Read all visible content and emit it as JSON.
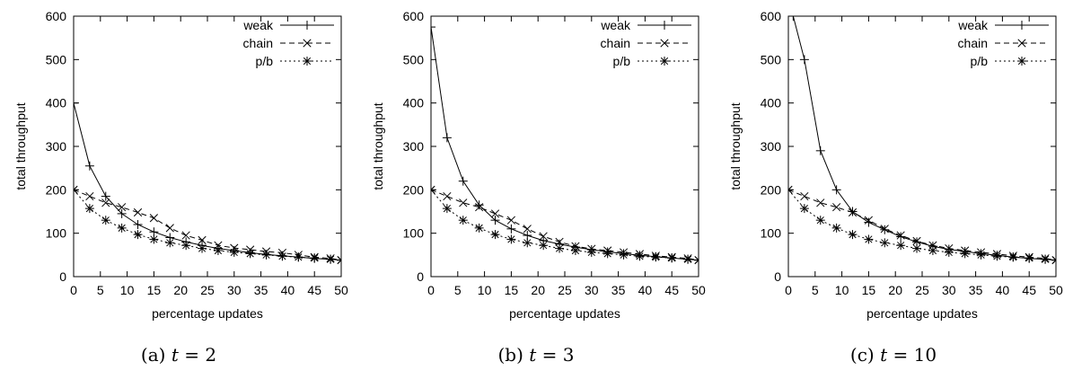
{
  "chart_data": [
    {
      "type": "line",
      "caption_prefix": "(a)",
      "caption_var": "t",
      "caption_eq": "= 2",
      "xlabel": "percentage updates",
      "ylabel": "total throughput",
      "xlim": [
        0,
        50
      ],
      "ylim": [
        0,
        600
      ],
      "xticks": [
        "0",
        "5",
        "10",
        "15",
        "20",
        "25",
        "30",
        "35",
        "40",
        "45",
        "50"
      ],
      "yticks": [
        "0",
        "100",
        "200",
        "300",
        "400",
        "500",
        "600"
      ],
      "grid": false,
      "legend_position": "top-right",
      "series": [
        {
          "name": "weak",
          "marker": "plus",
          "dash": "",
          "x": [
            0,
            3,
            6,
            9,
            12,
            15,
            18,
            21,
            24,
            27,
            30,
            33,
            36,
            39,
            42,
            45,
            48,
            50
          ],
          "y": [
            400,
            255,
            185,
            145,
            120,
            103,
            90,
            80,
            72,
            65,
            60,
            55,
            51,
            48,
            45,
            42,
            40,
            38
          ]
        },
        {
          "name": "chain",
          "marker": "cross",
          "dash": "6,4",
          "x": [
            0,
            3,
            6,
            9,
            12,
            15,
            18,
            21,
            24,
            27,
            30,
            33,
            36,
            39,
            42,
            45,
            48,
            50
          ],
          "y": [
            200,
            185,
            170,
            160,
            148,
            135,
            112,
            95,
            84,
            72,
            66,
            62,
            58,
            55,
            50,
            45,
            42,
            38
          ]
        },
        {
          "name": "p/b",
          "marker": "star",
          "dash": "2,3",
          "x": [
            0,
            3,
            6,
            9,
            12,
            15,
            18,
            21,
            24,
            27,
            30,
            33,
            36,
            39,
            42,
            45,
            48,
            50
          ],
          "y": [
            200,
            157,
            130,
            112,
            97,
            86,
            78,
            72,
            65,
            60,
            56,
            53,
            50,
            47,
            45,
            43,
            40,
            38
          ]
        }
      ]
    },
    {
      "type": "line",
      "caption_prefix": "(b)",
      "caption_var": "t",
      "caption_eq": "= 3",
      "xlabel": "percentage updates",
      "ylabel": "total throughput",
      "xlim": [
        0,
        50
      ],
      "ylim": [
        0,
        600
      ],
      "xticks": [
        "0",
        "5",
        "10",
        "15",
        "20",
        "25",
        "30",
        "35",
        "40",
        "45",
        "50"
      ],
      "yticks": [
        "0",
        "100",
        "200",
        "300",
        "400",
        "500",
        "600"
      ],
      "grid": false,
      "legend_position": "top-right",
      "series": [
        {
          "name": "weak",
          "marker": "plus",
          "dash": "",
          "x": [
            0,
            3,
            6,
            9,
            12,
            15,
            18,
            21,
            24,
            27,
            30,
            33,
            36,
            39,
            42,
            45,
            48,
            50
          ],
          "y": [
            575,
            320,
            220,
            165,
            130,
            110,
            95,
            83,
            75,
            68,
            62,
            57,
            53,
            49,
            46,
            43,
            40,
            38
          ]
        },
        {
          "name": "chain",
          "marker": "cross",
          "dash": "6,4",
          "x": [
            0,
            3,
            6,
            9,
            12,
            15,
            18,
            21,
            24,
            27,
            30,
            33,
            36,
            39,
            42,
            45,
            48,
            50
          ],
          "y": [
            200,
            185,
            170,
            160,
            145,
            130,
            110,
            93,
            80,
            70,
            64,
            60,
            56,
            52,
            48,
            45,
            42,
            38
          ]
        },
        {
          "name": "p/b",
          "marker": "star",
          "dash": "2,3",
          "x": [
            0,
            3,
            6,
            9,
            12,
            15,
            18,
            21,
            24,
            27,
            30,
            33,
            36,
            39,
            42,
            45,
            48,
            50
          ],
          "y": [
            200,
            157,
            130,
            112,
            97,
            86,
            78,
            72,
            65,
            60,
            56,
            53,
            50,
            47,
            45,
            43,
            40,
            38
          ]
        }
      ]
    },
    {
      "type": "line",
      "caption_prefix": "(c)",
      "caption_var": "t",
      "caption_eq": "= 10",
      "xlabel": "percentage updates",
      "ylabel": "total throughput",
      "xlim": [
        0,
        50
      ],
      "ylim": [
        0,
        600
      ],
      "xticks": [
        "0",
        "5",
        "10",
        "15",
        "20",
        "25",
        "30",
        "35",
        "40",
        "45",
        "50"
      ],
      "yticks": [
        "0",
        "100",
        "200",
        "300",
        "400",
        "500",
        "600"
      ],
      "grid": false,
      "legend_position": "top-right",
      "series": [
        {
          "name": "weak",
          "marker": "plus",
          "dash": "",
          "x": [
            0.9,
            3,
            6,
            9,
            12,
            15,
            18,
            21,
            24,
            27,
            30,
            33,
            36,
            39,
            42,
            45,
            48,
            50
          ],
          "y": [
            600,
            500,
            290,
            200,
            150,
            125,
            108,
            92,
            80,
            70,
            63,
            58,
            53,
            49,
            45,
            42,
            40,
            38
          ]
        },
        {
          "name": "chain",
          "marker": "cross",
          "dash": "6,4",
          "x": [
            0,
            3,
            6,
            9,
            12,
            15,
            18,
            21,
            24,
            27,
            30,
            33,
            36,
            39,
            42,
            45,
            48,
            50
          ],
          "y": [
            200,
            185,
            170,
            160,
            148,
            130,
            110,
            95,
            82,
            72,
            65,
            60,
            56,
            52,
            48,
            45,
            42,
            38
          ]
        },
        {
          "name": "p/b",
          "marker": "star",
          "dash": "2,3",
          "x": [
            0,
            3,
            6,
            9,
            12,
            15,
            18,
            21,
            24,
            27,
            30,
            33,
            36,
            39,
            42,
            45,
            48,
            50
          ],
          "y": [
            200,
            157,
            130,
            112,
            97,
            86,
            78,
            72,
            65,
            60,
            56,
            53,
            50,
            47,
            45,
            43,
            40,
            38
          ]
        }
      ]
    }
  ]
}
